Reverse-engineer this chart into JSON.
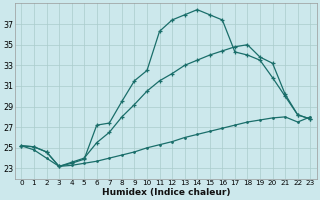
{
  "xlabel": "Humidex (Indice chaleur)",
  "background_color": "#cce8ec",
  "grid_color": "#aacccc",
  "line_color": "#1a6e6a",
  "xlim": [
    -0.5,
    23.5
  ],
  "ylim": [
    22.0,
    39.0
  ],
  "xticks": [
    0,
    1,
    2,
    3,
    4,
    5,
    6,
    7,
    8,
    9,
    10,
    11,
    12,
    13,
    14,
    15,
    16,
    17,
    18,
    19,
    20,
    21,
    22,
    23
  ],
  "yticks": [
    23,
    25,
    27,
    29,
    31,
    33,
    35,
    37
  ],
  "line1_x": [
    0,
    1,
    2,
    3,
    4,
    5,
    6,
    7,
    8,
    9,
    10,
    11,
    12,
    13,
    14,
    15,
    16,
    17,
    18,
    19,
    20,
    21,
    22,
    23
  ],
  "line1_y": [
    25.2,
    25.1,
    24.6,
    23.2,
    23.5,
    23.9,
    27.2,
    27.4,
    29.5,
    31.5,
    32.5,
    36.3,
    37.4,
    37.9,
    38.4,
    37.9,
    37.4,
    34.3,
    34.0,
    33.5,
    31.8,
    30.0,
    28.2,
    27.8
  ],
  "line2_x": [
    0,
    1,
    2,
    3,
    4,
    5,
    6,
    7,
    8,
    9,
    10,
    11,
    12,
    13,
    14,
    15,
    16,
    17,
    18,
    19,
    20,
    21,
    22,
    23
  ],
  "line2_y": [
    25.2,
    25.1,
    24.6,
    23.2,
    23.6,
    24.0,
    25.5,
    26.5,
    28.0,
    29.2,
    30.5,
    31.5,
    32.2,
    33.0,
    33.5,
    34.0,
    34.4,
    34.8,
    35.0,
    33.8,
    33.2,
    30.2,
    28.2,
    27.8
  ],
  "line3_x": [
    0,
    1,
    2,
    3,
    4,
    5,
    6,
    7,
    8,
    9,
    10,
    11,
    12,
    13,
    14,
    15,
    16,
    17,
    18,
    19,
    20,
    21,
    22,
    23
  ],
  "line3_y": [
    25.2,
    24.8,
    24.0,
    23.2,
    23.3,
    23.5,
    23.7,
    24.0,
    24.3,
    24.6,
    25.0,
    25.3,
    25.6,
    26.0,
    26.3,
    26.6,
    26.9,
    27.2,
    27.5,
    27.7,
    27.9,
    28.0,
    27.5,
    28.0
  ]
}
